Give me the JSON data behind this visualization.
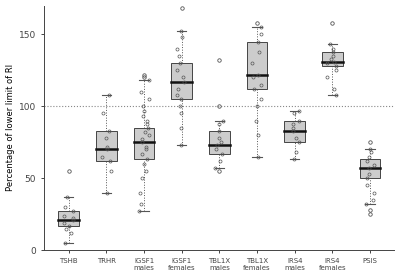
{
  "ylabel": "Percentage of lower limit of RI",
  "categories": [
    "TSHB",
    "TRHR",
    "IGSF1\nmales",
    "IGSF1\nfemales",
    "TBL1X\nmales",
    "TBL1X\nfemales",
    "IRS4\nmales",
    "IRS4\nfemales",
    "PSIS"
  ],
  "hline_y": 100,
  "ylim": [
    0,
    170
  ],
  "yticks": [
    0,
    50,
    100,
    150
  ],
  "box_facecolor": "#cccccc",
  "box_edgecolor": "#444444",
  "median_color": "#111111",
  "whisker_color": "#555555",
  "point_color": "#555555",
  "hline_color": "#888888",
  "groups": [
    {
      "name": "TSHB",
      "q1": 17,
      "median": 21,
      "q3": 27,
      "whisker_low": 5,
      "whisker_high": 37,
      "outliers": [
        55
      ],
      "points": [
        5,
        12,
        15,
        17,
        19,
        21,
        22,
        24,
        27,
        30,
        37
      ]
    },
    {
      "name": "TRHR",
      "q1": 62,
      "median": 70,
      "q3": 83,
      "whisker_low": 40,
      "whisker_high": 108,
      "outliers": [],
      "points": [
        40,
        55,
        62,
        65,
        70,
        72,
        78,
        83,
        95,
        108
      ]
    },
    {
      "name": "IGSF1\nmales",
      "q1": 63,
      "median": 75,
      "q3": 85,
      "whisker_low": 27,
      "whisker_high": 118,
      "outliers": [
        120,
        122
      ],
      "points": [
        27,
        32,
        40,
        50,
        55,
        60,
        63,
        67,
        70,
        72,
        75,
        77,
        80,
        82,
        85,
        88,
        90,
        93,
        97,
        100,
        105,
        110,
        118
      ]
    },
    {
      "name": "IGSF1\nfemales",
      "q1": 105,
      "median": 117,
      "q3": 130,
      "whisker_low": 73,
      "whisker_high": 152,
      "outliers": [
        168
      ],
      "points": [
        73,
        85,
        95,
        100,
        105,
        108,
        112,
        117,
        120,
        125,
        130,
        135,
        140,
        148,
        152
      ]
    },
    {
      "name": "TBL1X\nmales",
      "q1": 67,
      "median": 73,
      "q3": 83,
      "whisker_low": 57,
      "whisker_high": 90,
      "outliers": [
        55,
        100,
        132
      ],
      "points": [
        57,
        62,
        67,
        70,
        73,
        75,
        78,
        83,
        88,
        90
      ]
    },
    {
      "name": "TBL1X\nfemales",
      "q1": 112,
      "median": 122,
      "q3": 145,
      "whisker_low": 65,
      "whisker_high": 155,
      "outliers": [
        158
      ],
      "points": [
        65,
        80,
        90,
        100,
        105,
        112,
        115,
        120,
        122,
        130,
        138,
        145,
        150,
        155
      ]
    },
    {
      "name": "IRS4\nmales",
      "q1": 75,
      "median": 83,
      "q3": 90,
      "whisker_low": 63,
      "whisker_high": 97,
      "outliers": [],
      "points": [
        63,
        68,
        75,
        78,
        83,
        85,
        88,
        90,
        95,
        97
      ]
    },
    {
      "name": "IRS4\nfemales",
      "q1": 128,
      "median": 131,
      "q3": 138,
      "whisker_low": 108,
      "whisker_high": 143,
      "outliers": [
        158
      ],
      "points": [
        108,
        112,
        120,
        125,
        128,
        130,
        131,
        133,
        135,
        138,
        140,
        143
      ]
    },
    {
      "name": "PSIS",
      "q1": 50,
      "median": 57,
      "q3": 63,
      "whisker_low": 32,
      "whisker_high": 70,
      "outliers": [
        25,
        28,
        75
      ],
      "points": [
        32,
        35,
        40,
        45,
        50,
        53,
        57,
        59,
        62,
        65,
        68,
        70
      ]
    }
  ]
}
